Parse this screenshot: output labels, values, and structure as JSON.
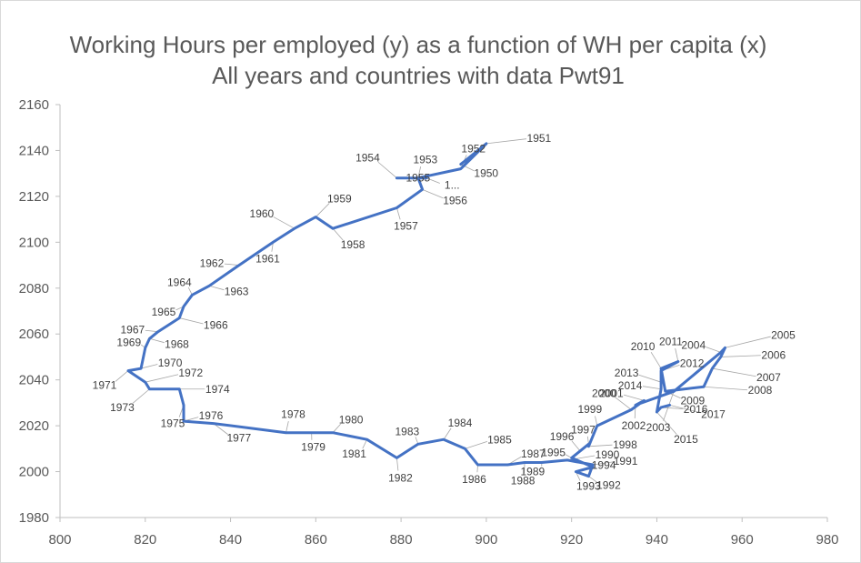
{
  "chart_data": {
    "type": "line",
    "title": "Working Hours per employed (y) as a function of WH per capita (x) All years and countries with data Pwt91",
    "xlabel": "",
    "ylabel": "",
    "xlim": [
      800,
      980
    ],
    "ylim": [
      1980,
      2160
    ],
    "xticks": [
      800,
      820,
      840,
      860,
      880,
      900,
      920,
      940,
      960,
      980
    ],
    "yticks": [
      1980,
      2000,
      2020,
      2040,
      2060,
      2080,
      2100,
      2120,
      2140,
      2160
    ],
    "grid": false,
    "legend": "none",
    "line_color": "#4472c4",
    "series": [
      {
        "points": [
          {
            "label": "1950",
            "x": 894,
            "y": 2134
          },
          {
            "label": "1951",
            "x": 900,
            "y": 2143
          },
          {
            "label": "1952",
            "x": 894,
            "y": 2132
          },
          {
            "label": "1953",
            "x": 884,
            "y": 2128
          },
          {
            "label": "1...",
            "x": 886,
            "y": 2128
          },
          {
            "label": "1954",
            "x": 879,
            "y": 2128
          },
          {
            "label": "1955",
            "x": 884,
            "y": 2128
          },
          {
            "label": "1956",
            "x": 885,
            "y": 2123
          },
          {
            "label": "1957",
            "x": 879,
            "y": 2115
          },
          {
            "label": "1958",
            "x": 864,
            "y": 2106
          },
          {
            "label": "1959",
            "x": 860,
            "y": 2111
          },
          {
            "label": "1960",
            "x": 855,
            "y": 2106
          },
          {
            "label": "1961",
            "x": 850,
            "y": 2100
          },
          {
            "label": "1962",
            "x": 842,
            "y": 2090
          },
          {
            "label": "1963",
            "x": 835,
            "y": 2081
          },
          {
            "label": "1964",
            "x": 831,
            "y": 2077
          },
          {
            "label": "1965",
            "x": 829,
            "y": 2072
          },
          {
            "label": "1966",
            "x": 828,
            "y": 2067
          },
          {
            "label": "1967",
            "x": 823,
            "y": 2061
          },
          {
            "label": "1968",
            "x": 821,
            "y": 2058
          },
          {
            "label": "1969",
            "x": 820,
            "y": 2054
          },
          {
            "label": "1970",
            "x": 819,
            "y": 2045
          },
          {
            "label": "1971",
            "x": 816,
            "y": 2044
          },
          {
            "label": "1972",
            "x": 820,
            "y": 2039
          },
          {
            "label": "1973",
            "x": 821,
            "y": 2036
          },
          {
            "label": "1974",
            "x": 828,
            "y": 2036
          },
          {
            "label": "1975",
            "x": 829,
            "y": 2029
          },
          {
            "label": "1976",
            "x": 829,
            "y": 2022
          },
          {
            "label": "1977",
            "x": 836,
            "y": 2021
          },
          {
            "label": "1978",
            "x": 853,
            "y": 2017
          },
          {
            "label": "1979",
            "x": 859,
            "y": 2017
          },
          {
            "label": "1980",
            "x": 864,
            "y": 2017
          },
          {
            "label": "1981",
            "x": 872,
            "y": 2014
          },
          {
            "label": "1982",
            "x": 879,
            "y": 2006
          },
          {
            "label": "1983",
            "x": 884,
            "y": 2012
          },
          {
            "label": "1984",
            "x": 890,
            "y": 2014
          },
          {
            "label": "1985",
            "x": 895,
            "y": 2010
          },
          {
            "label": "1986",
            "x": 898,
            "y": 2003
          },
          {
            "label": "1987",
            "x": 905,
            "y": 2003
          },
          {
            "label": "1988",
            "x": 909,
            "y": 2004
          },
          {
            "label": "1989",
            "x": 913,
            "y": 2004
          },
          {
            "label": "1990",
            "x": 919,
            "y": 2005
          },
          {
            "label": "1991",
            "x": 925,
            "y": 2003
          },
          {
            "label": "1992",
            "x": 924,
            "y": 1998
          },
          {
            "label": "1993",
            "x": 921,
            "y": 2000
          },
          {
            "label": "1994",
            "x": 925,
            "y": 2002
          },
          {
            "label": "1995",
            "x": 920,
            "y": 2006
          },
          {
            "label": "1996",
            "x": 922,
            "y": 2009
          },
          {
            "label": "1997",
            "x": 924,
            "y": 2012
          },
          {
            "label": "1998",
            "x": 924,
            "y": 2011
          },
          {
            "label": "1999",
            "x": 926,
            "y": 2020
          },
          {
            "label": "2000",
            "x": 934,
            "y": 2027
          },
          {
            "label": "2001",
            "x": 937,
            "y": 2031
          },
          {
            "label": "2002",
            "x": 935,
            "y": 2029
          },
          {
            "label": "2003",
            "x": 944,
            "y": 2035
          },
          {
            "label": "2004",
            "x": 955,
            "y": 2052
          },
          {
            "label": "2005",
            "x": 956,
            "y": 2054
          },
          {
            "label": "2006",
            "x": 955,
            "y": 2050
          },
          {
            "label": "2007",
            "x": 953,
            "y": 2045
          },
          {
            "label": "2008",
            "x": 951,
            "y": 2037
          },
          {
            "label": "2009",
            "x": 942,
            "y": 2035
          },
          {
            "label": "2010",
            "x": 941,
            "y": 2045
          },
          {
            "label": "2011",
            "x": 945,
            "y": 2048
          },
          {
            "label": "2012",
            "x": 941,
            "y": 2044
          },
          {
            "label": "2013",
            "x": 941,
            "y": 2039
          },
          {
            "label": "2014",
            "x": 941,
            "y": 2036
          },
          {
            "label": "2015",
            "x": 940,
            "y": 2026
          },
          {
            "label": "2016",
            "x": 941,
            "y": 2028
          },
          {
            "label": "2017",
            "x": 943,
            "y": 2029
          }
        ]
      }
    ]
  }
}
